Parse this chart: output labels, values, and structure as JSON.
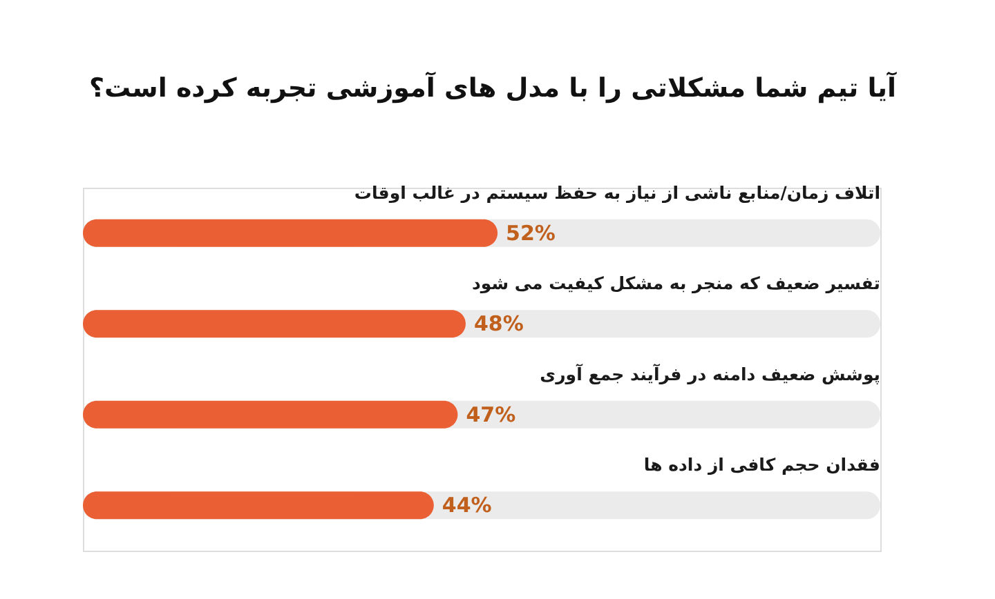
{
  "chart_data": {
    "type": "bar",
    "orientation": "horizontal",
    "title": "آیا تیم شما مشکلاتی را با مدل های آموزشی تجربه کرده است؟",
    "categories": [
      "اتلاف زمان/منابع ناشی از نیاز به حفظ سیستم در غالب اوقات",
      "تفسیر ضعیف که منجر به مشکل کیفیت می شود",
      "پوشش ضعیف دامنه در فرآیند جمع آوری",
      "فقدان حجم کافی از داده ها"
    ],
    "values": [
      52,
      48,
      47,
      44
    ],
    "color": "#ea5f34",
    "value_labels": [
      "52%",
      "48%",
      "47%",
      "44%"
    ],
    "xlim": [
      0,
      100
    ],
    "tick_labels": "y"
  }
}
